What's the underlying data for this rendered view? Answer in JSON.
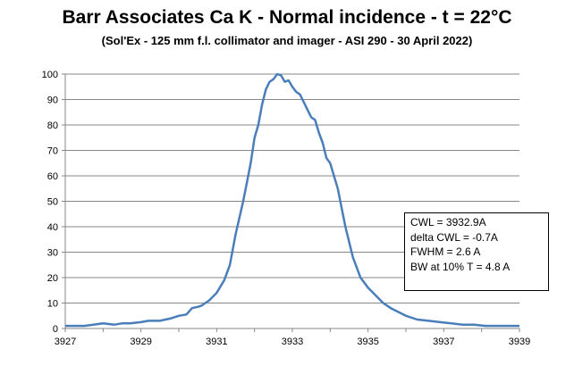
{
  "chart_data": {
    "type": "line",
    "title": "Barr Associates Ca K - Normal incidence - t  = 22°C",
    "subtitle": "(Sol'Ex - 125 mm f.l. collimator and imager - ASI 290 - 30 April 2022)",
    "xlabel": "",
    "ylabel": "",
    "xlim": [
      3927,
      3939
    ],
    "ylim": [
      0,
      100
    ],
    "x_ticks": [
      "3927",
      "3929",
      "3931",
      "3933",
      "3935",
      "3937",
      "3939"
    ],
    "y_ticks": [
      "0",
      "10",
      "20",
      "30",
      "40",
      "50",
      "60",
      "70",
      "80",
      "90",
      "100"
    ],
    "grid": "horizontal",
    "line_color": "#4a7ebb",
    "x": [
      3927.0,
      3927.5,
      3928.0,
      3928.3,
      3928.5,
      3928.7,
      3929.0,
      3929.2,
      3929.5,
      3929.8,
      3930.0,
      3930.2,
      3930.35,
      3930.5,
      3930.6,
      3930.8,
      3931.0,
      3931.2,
      3931.35,
      3931.5,
      3931.7,
      3931.9,
      3932.0,
      3932.1,
      3932.2,
      3932.3,
      3932.4,
      3932.5,
      3932.6,
      3932.7,
      3932.8,
      3932.9,
      3933.0,
      3933.1,
      3933.2,
      3933.3,
      3933.4,
      3933.5,
      3933.6,
      3933.7,
      3933.8,
      3933.9,
      3934.0,
      3934.2,
      3934.4,
      3934.6,
      3934.8,
      3935.0,
      3935.2,
      3935.4,
      3935.6,
      3935.8,
      3936.0,
      3936.3,
      3936.6,
      3936.9,
      3937.2,
      3937.5,
      3937.8,
      3938.1,
      3938.4,
      3938.7,
      3939.0
    ],
    "y": [
      1,
      1,
      2,
      1.5,
      2,
      2,
      2.5,
      3,
      3,
      4,
      5,
      5.5,
      8,
      8.5,
      9,
      11,
      14,
      19,
      25,
      37,
      50,
      65,
      75,
      80,
      88,
      94,
      97,
      98,
      100,
      99.5,
      97,
      97.5,
      95,
      93,
      92,
      89,
      86,
      83,
      82,
      77,
      73,
      67,
      65,
      55,
      40,
      28,
      20,
      16,
      13,
      10,
      8,
      6.5,
      5,
      3.5,
      3,
      2.5,
      2,
      1.5,
      1.5,
      1,
      1,
      1,
      1
    ],
    "annotations": [
      "CWL = 3932.9A",
      "delta CWL = -0.7A",
      "FWHM = 2.6 A",
      "BW at 10% T = 4.8 A"
    ]
  }
}
